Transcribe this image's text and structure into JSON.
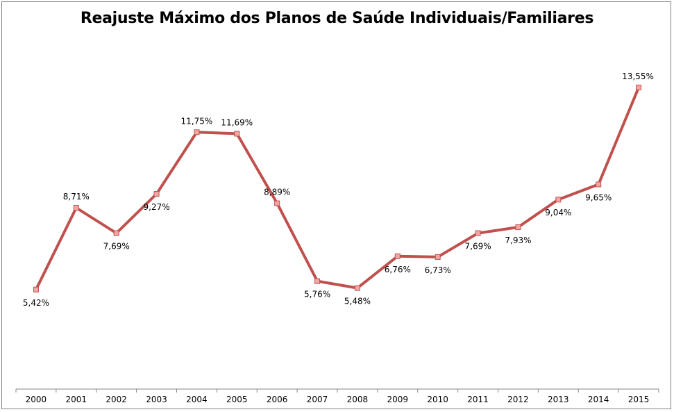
{
  "chart_data": {
    "type": "line",
    "title": "Reajuste Máximo dos Planos de Saúde Individuais/Familiares",
    "xlabel": "",
    "ylabel": "",
    "categories": [
      "2000",
      "2001",
      "2002",
      "2003",
      "2004",
      "2005",
      "2006",
      "2007",
      "2008",
      "2009",
      "2010",
      "2011",
      "2012",
      "2013",
      "2014",
      "2015"
    ],
    "series": [
      {
        "values": [
          5.42,
          8.71,
          7.69,
          9.27,
          11.75,
          11.69,
          8.89,
          5.76,
          5.48,
          6.76,
          6.73,
          7.69,
          7.93,
          9.04,
          9.65,
          13.55
        ],
        "labels": [
          "5,42%",
          "8,71%",
          "7,69%",
          "9,27%",
          "11,75%",
          "11,69%",
          "8,89%",
          "5,76%",
          "5,48%",
          "6,76%",
          "6,73%",
          "7,69%",
          "7,93%",
          "9,04%",
          "9,65%",
          "13,55%"
        ],
        "label_positions": [
          "below",
          "above",
          "below",
          "below",
          "above",
          "above",
          "above",
          "below",
          "below",
          "below",
          "below",
          "below",
          "below",
          "below",
          "below",
          "above"
        ]
      }
    ],
    "line_color": "#c0504d",
    "marker_fill": "#f4a6a4",
    "axis_color": "#868686",
    "grid": false,
    "legend": "none",
    "y_axis_visible": false
  }
}
